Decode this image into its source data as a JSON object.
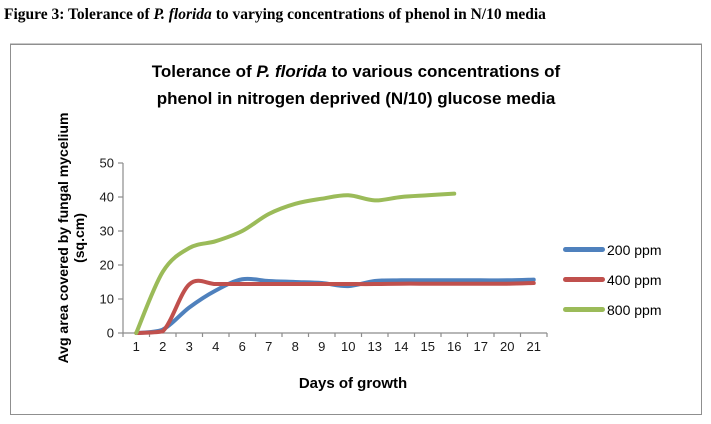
{
  "figure_caption": {
    "part1": "Figure 3: Tolerance of ",
    "italic": "P. florida",
    "part2": " to varying concentrations of phenol in N/10 media"
  },
  "chart": {
    "title": {
      "part1": "Tolerance of ",
      "italic": "P. florida",
      "part2": " to various concentrations of",
      "line2": "phenol in nitrogen deprived (N/10) glucose media"
    },
    "x_axis_title": "Days of growth",
    "y_axis_title_line1": "Avg area covered by fungal mycelium",
    "y_axis_title_line2": "(sq.cm)"
  },
  "chart_data": {
    "type": "line",
    "title": "Tolerance of P. florida to various concentrations of phenol in nitrogen deprived (N/10) glucose media",
    "xlabel": "Days of growth",
    "ylabel": "Avg area covered by fungal mycelium (sq.cm)",
    "categories": [
      "1",
      "2",
      "3",
      "4",
      "6",
      "7",
      "8",
      "9",
      "10",
      "13",
      "14",
      "15",
      "16",
      "17",
      "20",
      "21"
    ],
    "ylim": [
      0,
      50
    ],
    "y_ticks": [
      0,
      10,
      20,
      30,
      40,
      50
    ],
    "grid": false,
    "smoothed_lines": true,
    "legend_position": "right",
    "axis_color": "#8c8c8c",
    "series": [
      {
        "name": "200 ppm",
        "color": "#4F81BD",
        "values": [
          0,
          1,
          7.5,
          12.5,
          15.8,
          15.3,
          15,
          14.7,
          13.8,
          15.3,
          15.5,
          15.5,
          15.5,
          15.5,
          15.5,
          15.7
        ]
      },
      {
        "name": "400 ppm",
        "color": "#C0504D",
        "values": [
          0,
          0.5,
          14.3,
          14.4,
          14.4,
          14.4,
          14.4,
          14.4,
          14.4,
          14.4,
          14.5,
          14.5,
          14.5,
          14.5,
          14.5,
          14.7
        ]
      },
      {
        "name": "800 ppm",
        "color": "#9BBB59",
        "values": [
          0,
          18,
          25,
          27,
          30,
          35,
          38,
          39.5,
          40.5,
          39,
          40,
          40.5,
          41,
          null,
          null,
          null
        ]
      }
    ]
  }
}
